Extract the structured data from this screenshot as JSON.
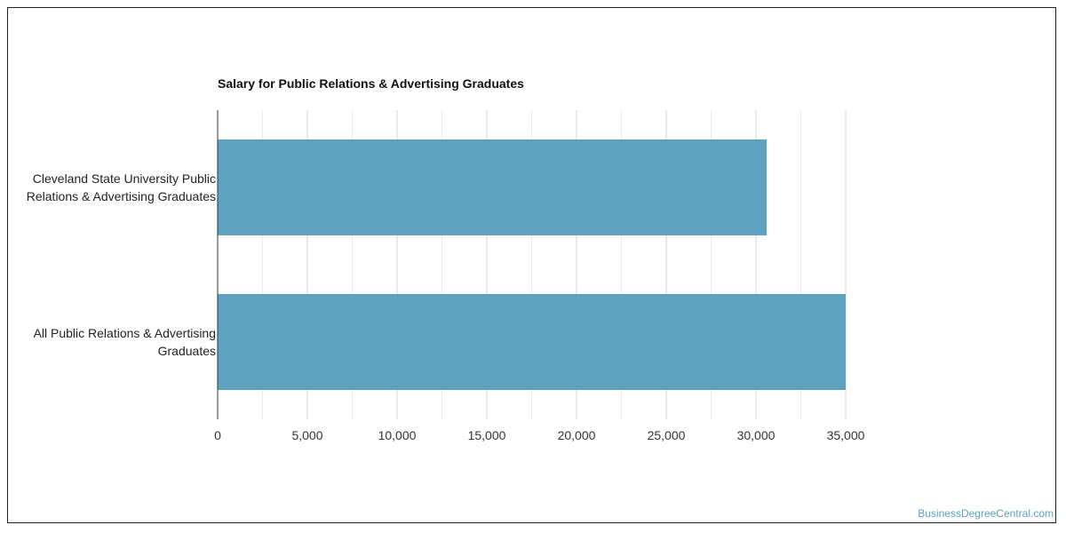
{
  "chart_data": {
    "type": "bar",
    "orientation": "horizontal",
    "title": "Salary for Public Relations & Advertising Graduates",
    "categories": [
      [
        "Cleveland State University Public",
        "Relations & Advertising Graduates"
      ],
      [
        "All Public Relations & Advertising",
        "Graduates"
      ]
    ],
    "values": [
      30600,
      35000
    ],
    "xlim": [
      0,
      35000
    ],
    "xticks": [
      0,
      5000,
      10000,
      15000,
      20000,
      25000,
      30000,
      35000
    ],
    "xtick_labels": [
      "0",
      "5,000",
      "10,000",
      "15,000",
      "20,000",
      "25,000",
      "30,000",
      "35,000"
    ],
    "xlabel": "",
    "ylabel": "",
    "grid": true,
    "bar_color": "#5ea2bf"
  },
  "watermark": "BusinessDegreeCentral.com"
}
